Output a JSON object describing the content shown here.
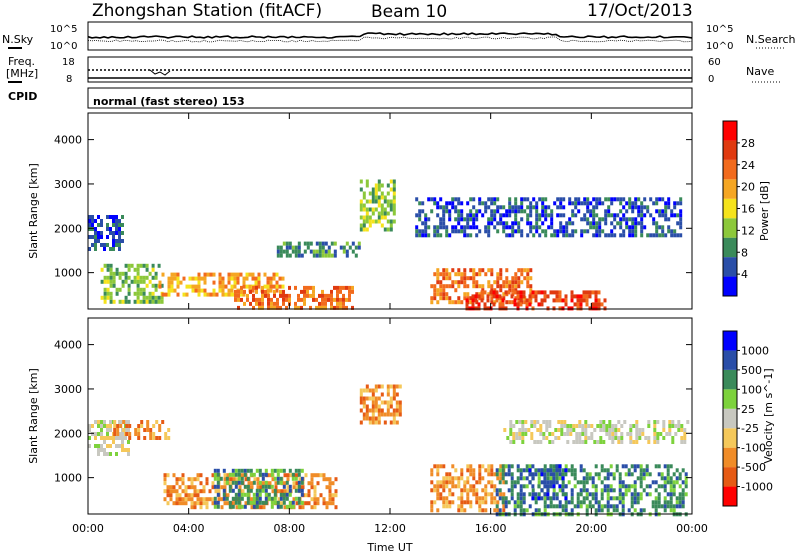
{
  "header": {
    "station": "Zhongshan Station (fitACF)",
    "beam": "Beam 10",
    "date": "17/Oct/2013"
  },
  "top_panel": {
    "left_label": "N.Sky",
    "right_label": "N.Search",
    "left_ticks": [
      "10^5",
      "10^0"
    ],
    "right_ticks": [
      "10^5",
      "10^0"
    ]
  },
  "freq_panel": {
    "left_label_1": "Freq.",
    "left_label_2": "[MHz]",
    "right_label": "Nave",
    "left_ticks": [
      "18",
      "8"
    ],
    "right_ticks": [
      "60",
      "0"
    ]
  },
  "cpid_panel": {
    "label": "CPID",
    "text": "normal (fast stereo) 153"
  },
  "colors": {
    "power_scale": [
      "#0000ff",
      "#2a4ea8",
      "#3a8a5a",
      "#8cc83a",
      "#f5e31c",
      "#f5a623",
      "#f26b1d",
      "#e03a10",
      "#ff0000"
    ],
    "velocity_scale": [
      "#ff0000",
      "#e65a14",
      "#f08c28",
      "#f5c85a",
      "#c8c8c0",
      "#7dd23c",
      "#3a8a5a",
      "#2a4ea8",
      "#0000ff"
    ]
  },
  "chart_data": [
    {
      "type": "heatmap",
      "ylabel": "Slant Range [km]",
      "xlabel": "Time UT",
      "x_ticks": [
        "00:00",
        "04:00",
        "08:00",
        "12:00",
        "16:00",
        "20:00",
        "00:00"
      ],
      "x_range": [
        0,
        24
      ],
      "y_ticks": [
        "1000",
        "2000",
        "3000",
        "4000"
      ],
      "ylim": [
        180,
        4600
      ],
      "colorbar_label": "Power [dB]",
      "colorbar_ticks": [
        "4",
        "8",
        "12",
        "16",
        "20",
        "24",
        "28"
      ],
      "colorbar_range": [
        0,
        32
      ],
      "echo_regions": [
        {
          "t0": 0.0,
          "t1": 1.4,
          "r0": 1500,
          "r1": 2300,
          "value": 6
        },
        {
          "t0": 0.5,
          "t1": 3.0,
          "r0": 300,
          "r1": 1200,
          "value": 12
        },
        {
          "t0": 2.8,
          "t1": 7.8,
          "r0": 500,
          "r1": 1000,
          "value": 18
        },
        {
          "t0": 5.8,
          "t1": 10.5,
          "r0": 200,
          "r1": 700,
          "value": 22
        },
        {
          "t0": 7.5,
          "t1": 10.8,
          "r0": 1400,
          "r1": 1700,
          "value": 10
        },
        {
          "t0": 10.8,
          "t1": 12.2,
          "r0": 2000,
          "r1": 3100,
          "value": 14
        },
        {
          "t0": 13.6,
          "t1": 17.6,
          "r0": 300,
          "r1": 1100,
          "value": 24
        },
        {
          "t0": 15.0,
          "t1": 20.5,
          "r0": 200,
          "r1": 600,
          "value": 28
        },
        {
          "t0": 13.0,
          "t1": 23.5,
          "r0": 1800,
          "r1": 2700,
          "value": 6
        }
      ]
    },
    {
      "type": "heatmap",
      "ylabel": "Slant Range [km]",
      "xlabel": "Time UT",
      "x_ticks": [
        "00:00",
        "04:00",
        "08:00",
        "12:00",
        "16:00",
        "20:00",
        "00:00"
      ],
      "x_range": [
        0,
        24
      ],
      "y_ticks": [
        "1000",
        "2000",
        "3000",
        "4000"
      ],
      "ylim": [
        180,
        4600
      ],
      "colorbar_label": "Velocity [m s^-1]",
      "colorbar_ticks": [
        "-1000",
        "-500",
        "-100",
        "-25",
        "25",
        "100",
        "500",
        "1000"
      ],
      "echo_regions": [
        {
          "t0": 0.0,
          "t1": 1.6,
          "r0": 1500,
          "r1": 2300,
          "value": 0
        },
        {
          "t0": 1.0,
          "t1": 3.2,
          "r0": 1900,
          "r1": 2300,
          "value": -200
        },
        {
          "t0": 3.0,
          "t1": 9.8,
          "r0": 300,
          "r1": 1100,
          "value": -150
        },
        {
          "t0": 5.0,
          "t1": 8.5,
          "r0": 300,
          "r1": 1200,
          "value": 300
        },
        {
          "t0": 10.8,
          "t1": 12.4,
          "r0": 2200,
          "r1": 3100,
          "value": -300
        },
        {
          "t0": 13.6,
          "t1": 16.5,
          "r0": 300,
          "r1": 1300,
          "value": -400
        },
        {
          "t0": 16.2,
          "t1": 23.8,
          "r0": 200,
          "r1": 1300,
          "value": 300
        },
        {
          "t0": 17.5,
          "t1": 19.0,
          "r0": 500,
          "r1": 1300,
          "value": 800
        },
        {
          "t0": 16.5,
          "t1": 23.8,
          "r0": 1800,
          "r1": 2300,
          "value": 0
        }
      ]
    }
  ]
}
